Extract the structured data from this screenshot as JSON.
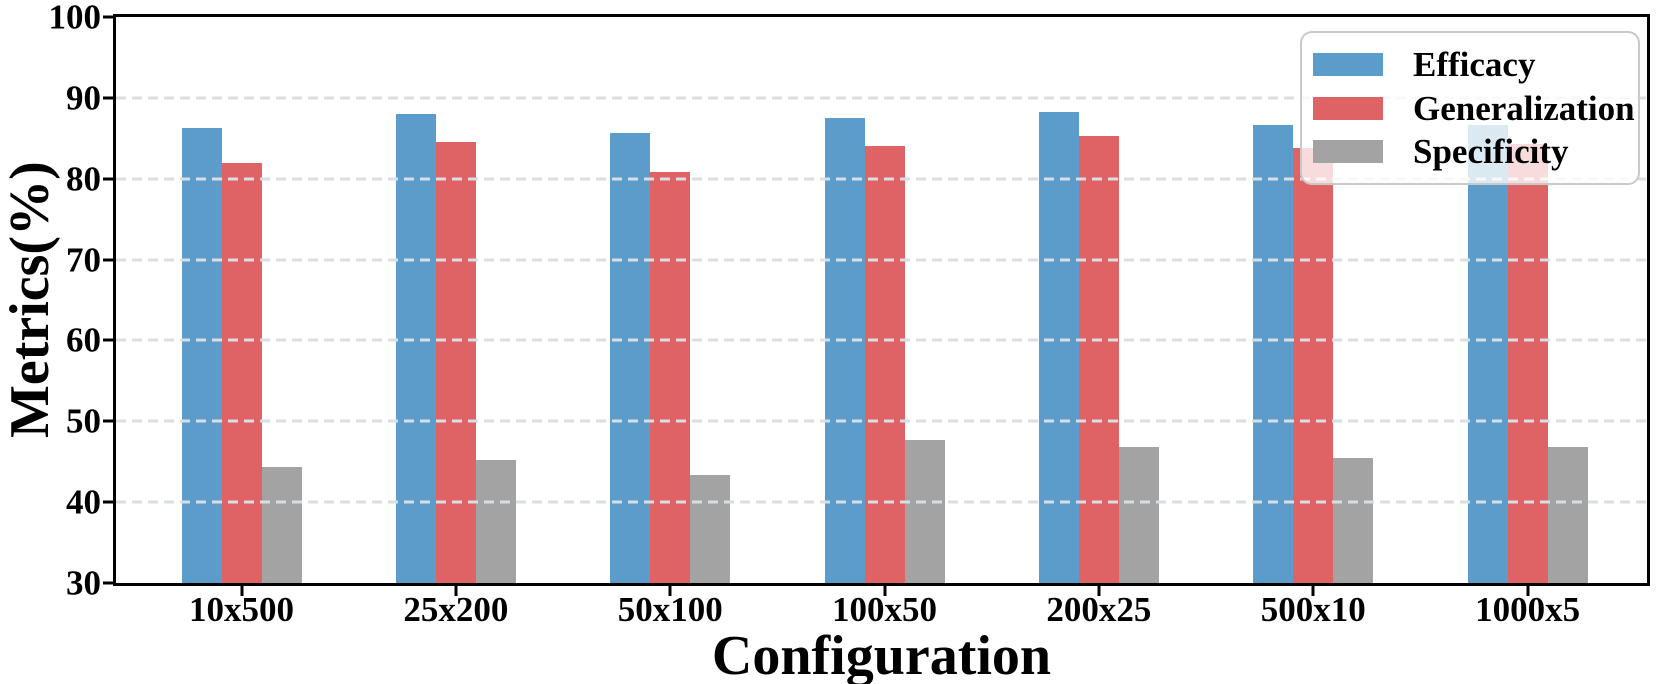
{
  "chart_data": {
    "type": "bar",
    "title": "",
    "xlabel": "Configuration",
    "ylabel": "Metrics(%)",
    "categories": [
      "10x500",
      "25x200",
      "50x100",
      "100x50",
      "200x25",
      "500x10",
      "1000x5"
    ],
    "series": [
      {
        "name": "Efficacy",
        "color": "#5b9cca",
        "values": [
          86.3,
          88.0,
          85.6,
          87.5,
          88.2,
          86.6,
          86.7
        ]
      },
      {
        "name": "Generalization",
        "color": "#df6264",
        "values": [
          81.9,
          84.6,
          80.8,
          84.1,
          85.3,
          83.8,
          84.3
        ]
      },
      {
        "name": "Specificity",
        "color": "#a3a3a3",
        "values": [
          44.4,
          45.2,
          43.3,
          47.7,
          46.8,
          45.4,
          46.8
        ]
      }
    ],
    "ylim": [
      30,
      100
    ],
    "yticks": [
      30,
      40,
      50,
      60,
      70,
      80,
      90,
      100
    ],
    "gridline_values": [
      40,
      50,
      60,
      70,
      80,
      90
    ],
    "grid": "horizontal-dashed",
    "legend": {
      "position": "upper-right",
      "entries": [
        "Efficacy",
        "Generalization",
        "Specificity"
      ]
    }
  },
  "style_colors": {
    "grid": "#d9dee3",
    "axis": "#000000",
    "legend_border": "#c9c9c9",
    "background": "#ffffff"
  }
}
